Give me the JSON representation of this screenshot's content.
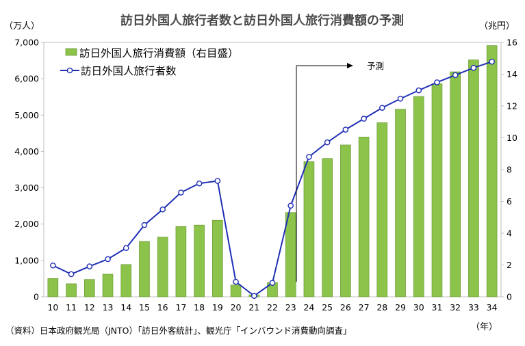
{
  "chart_data": {
    "type": "bar",
    "title": "訪日外国人旅行者数と訪日外国人旅行消費額の予測",
    "left_unit": "（万人）",
    "right_unit": "（兆円）",
    "x_unit": "（年）",
    "categories": [
      "10",
      "11",
      "12",
      "13",
      "14",
      "15",
      "16",
      "17",
      "18",
      "19",
      "20",
      "21",
      "22",
      "23",
      "24",
      "25",
      "26",
      "27",
      "28",
      "29",
      "30",
      "31",
      "32",
      "33",
      "34"
    ],
    "left_axis": {
      "min": 0,
      "max": 7000,
      "step": 1000,
      "ticks": [
        "0",
        "1,000",
        "2,000",
        "3,000",
        "4,000",
        "5,000",
        "6,000",
        "7,000"
      ]
    },
    "right_axis": {
      "min": 0,
      "max": 16,
      "step": 2,
      "ticks": [
        "0",
        "2",
        "4",
        "6",
        "8",
        "10",
        "12",
        "14",
        "16"
      ]
    },
    "series": [
      {
        "name": "訪日外国人旅行消費額（右目盛）",
        "type": "bar",
        "axis": "right",
        "color": "#8cc34a",
        "values": [
          1.15,
          0.82,
          1.09,
          1.42,
          2.03,
          3.48,
          3.75,
          4.42,
          4.51,
          4.81,
          0.74,
          0.12,
          0.89,
          5.3,
          8.5,
          8.7,
          9.55,
          10.05,
          10.95,
          11.8,
          12.6,
          13.4,
          14.15,
          14.9,
          15.8
        ]
      },
      {
        "name": "訪日外国人旅行者数",
        "type": "line",
        "axis": "left",
        "color": "#1f2fb5",
        "values": [
          861,
          622,
          836,
          1036,
          1341,
          1974,
          2404,
          2869,
          3119,
          3188,
          412,
          25,
          383,
          2507,
          3850,
          4250,
          4600,
          4900,
          5200,
          5450,
          5680,
          5900,
          6100,
          6300,
          6470
        ]
      }
    ],
    "annotation": "予測",
    "grid": false,
    "legend_position": "top-left",
    "source": "（資料）日本政府観光局（JNTO）「訪日外客統計」、観光庁「インバウンド消費動向調査」"
  }
}
